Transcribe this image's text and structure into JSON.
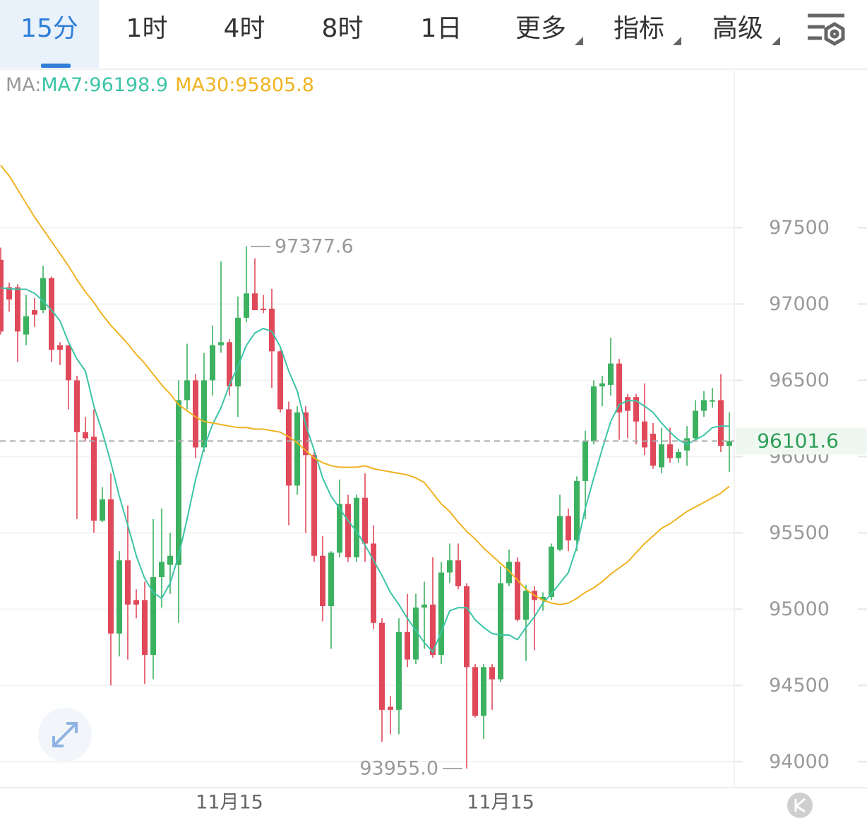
{
  "tabs": [
    "15分",
    "1时",
    "4时",
    "8时",
    "1日",
    "更多",
    "指标",
    "高级"
  ],
  "chart_data": {
    "type": "candlestick",
    "ma_label": "MA:",
    "up_color": "#3cb160",
    "down_color": "#e0495a",
    "ylim": [
      93830,
      98530
    ],
    "yticks": [
      94000,
      94500,
      95000,
      95500,
      96000,
      96500,
      97000,
      97500
    ],
    "grid": true,
    "last_price": 96101.6,
    "max_marker": 97377.6,
    "min_marker": {
      "value": 93955,
      "label": "93955.0"
    },
    "categories": [
      null,
      null,
      null,
      null,
      null,
      null,
      null,
      null,
      null,
      null,
      null,
      null,
      null,
      null,
      null,
      null,
      null,
      null,
      null,
      null,
      null,
      null,
      null,
      null,
      null,
      null,
      null,
      "11月15",
      null,
      null,
      null,
      null,
      null,
      null,
      null,
      null,
      null,
      null,
      null,
      null,
      null,
      null,
      null,
      null,
      null,
      null,
      null,
      null,
      null,
      null,
      null,
      null,
      null,
      null,
      null,
      null,
      null,
      null,
      null,
      "11月15",
      null,
      null,
      null,
      null,
      null,
      null,
      null,
      null,
      null,
      null,
      null,
      null,
      null,
      null,
      null,
      null,
      null,
      null,
      null,
      null,
      null,
      null,
      null,
      null,
      null,
      null,
      null
    ],
    "open": [
      97290,
      97110,
      97110,
      96800,
      96960,
      96960,
      97170,
      96730,
      96730,
      96500,
      96160,
      96130,
      95580,
      95720,
      94840,
      95320,
      95060,
      95060,
      94700,
      95210,
      95290,
      95290,
      96370,
      96500,
      96060,
      96500,
      96730,
      96750,
      96460,
      96910,
      97070,
      96970,
      96970,
      96690,
      96310,
      95810,
      96290,
      96010,
      95350,
      95020,
      95370,
      95690,
      95340,
      95730,
      95430,
      94910,
      94360,
      94340,
      94850,
      94670,
      95010,
      95030,
      94700,
      95240,
      95320,
      95150,
      94620,
      94300,
      94620,
      94540,
      95170,
      95310,
      94930,
      95120,
      95060,
      95080,
      95390,
      95610,
      95450,
      95840,
      96100,
      96460,
      96470,
      96610,
      96390,
      96390,
      96230,
      96150,
      95930,
      96080,
      95990,
      96040,
      96120,
      96300,
      96360,
      96370,
      96070
    ],
    "high": [
      97370,
      97140,
      97130,
      97060,
      97040,
      97250,
      97180,
      96750,
      96730,
      96530,
      96260,
      96310,
      95800,
      95890,
      95380,
      95680,
      95130,
      95180,
      95590,
      95660,
      95500,
      96500,
      96740,
      96540,
      96680,
      96860,
      97280,
      96770,
      97050,
      97377.6,
      97300,
      97060,
      97100,
      96700,
      96360,
      96330,
      96330,
      96030,
      95480,
      95380,
      95850,
      95750,
      95750,
      95890,
      95550,
      94940,
      94430,
      94940,
      95100,
      95100,
      95180,
      95340,
      95310,
      95430,
      95430,
      95170,
      94640,
      94640,
      94640,
      95280,
      95390,
      95340,
      95160,
      95150,
      95110,
      95430,
      95750,
      95660,
      95870,
      96170,
      96500,
      96530,
      96780,
      96640,
      96410,
      96410,
      96480,
      96220,
      96190,
      96190,
      96050,
      96200,
      96370,
      96430,
      96450,
      96540,
      96290
    ],
    "low": [
      96800,
      96950,
      96620,
      96730,
      96850,
      96940,
      96620,
      96600,
      96310,
      95590,
      96100,
      95500,
      95570,
      94500,
      94690,
      94670,
      94940,
      94510,
      94540,
      95010,
      95100,
      94910,
      96310,
      95990,
      96030,
      96400,
      96680,
      96400,
      96260,
      96880,
      96960,
      96940,
      96450,
      96290,
      95550,
      95750,
      95500,
      95310,
      94920,
      94740,
      95340,
      95310,
      95310,
      95310,
      94870,
      94130,
      94180,
      94180,
      94620,
      94640,
      94740,
      94680,
      94640,
      95170,
      95130,
      93955,
      94290,
      94150,
      94340,
      94520,
      95150,
      94920,
      94660,
      94730,
      94990,
      95060,
      95380,
      95380,
      95380,
      95590,
      96080,
      96330,
      96400,
      96110,
      96120,
      96080,
      96010,
      95920,
      95890,
      95960,
      95960,
      95940,
      96100,
      96260,
      96320,
      96030,
      95900
    ],
    "close": [
      96820,
      97030,
      96820,
      96920,
      96930,
      97170,
      96700,
      96700,
      96500,
      96160,
      96120,
      95580,
      95720,
      94840,
      95320,
      95030,
      95030,
      94700,
      95210,
      95310,
      95350,
      96370,
      96500,
      96060,
      96500,
      96730,
      96750,
      96460,
      96910,
      97070,
      96960,
      96960,
      96690,
      96310,
      95810,
      96290,
      96010,
      95350,
      95020,
      95370,
      95690,
      95340,
      95730,
      95430,
      94910,
      94340,
      94340,
      94850,
      94670,
      95010,
      95030,
      94700,
      95240,
      95320,
      95150,
      94620,
      94300,
      94620,
      94540,
      95170,
      95310,
      94930,
      95120,
      95060,
      95080,
      95410,
      95610,
      95450,
      95840,
      96100,
      96460,
      96480,
      96610,
      96290,
      96300,
      96230,
      96060,
      95940,
      96080,
      95990,
      96030,
      96120,
      96300,
      96370,
      96370,
      96070,
      96101.6
    ],
    "series": [
      {
        "name": "MA7:96198.9",
        "color": "#3cc4a6",
        "values": [
          97106,
          97100,
          97097,
          97097,
          97070,
          97020,
          96960,
          96890,
          96750,
          96640,
          96560,
          96330,
          96160,
          95960,
          95740,
          95550,
          95350,
          95200,
          95110,
          95070,
          95170,
          95350,
          95590,
          95850,
          96060,
          96210,
          96320,
          96470,
          96590,
          96730,
          96810,
          96840,
          96820,
          96720,
          96560,
          96430,
          96210,
          96040,
          95860,
          95740,
          95660,
          95580,
          95510,
          95420,
          95320,
          95220,
          95110,
          95030,
          94940,
          94860,
          94780,
          94720,
          94850,
          94990,
          95010,
          95010,
          94930,
          94880,
          94840,
          94830,
          94830,
          94800,
          94880,
          94950,
          95040,
          95100,
          95170,
          95240,
          95410,
          95660,
          95860,
          96050,
          96230,
          96340,
          96366,
          96366,
          96330,
          96290,
          96220,
          96160,
          96110,
          96080,
          96110,
          96140,
          96190,
          96200,
          96198.9
        ]
      },
      {
        "name": "MA30:95805.8",
        "color": "#efb320",
        "values": [
          97910,
          97840,
          97750,
          97660,
          97570,
          97490,
          97410,
          97330,
          97250,
          97160,
          97080,
          97010,
          96930,
          96860,
          96800,
          96740,
          96670,
          96610,
          96540,
          96470,
          96410,
          96340,
          96300,
          96260,
          96230,
          96220,
          96210,
          96200,
          96190,
          96190,
          96180,
          96180,
          96170,
          96160,
          96130,
          96090,
          96040,
          95990,
          95960,
          95940,
          95930,
          95930,
          95930,
          95940,
          95920,
          95910,
          95900,
          95890,
          95880,
          95860,
          95830,
          95760,
          95690,
          95640,
          95570,
          95510,
          95460,
          95400,
          95350,
          95300,
          95250,
          95190,
          95130,
          95090,
          95060,
          95040,
          95030,
          95040,
          95070,
          95110,
          95140,
          95180,
          95230,
          95270,
          95310,
          95370,
          95430,
          95480,
          95530,
          95560,
          95600,
          95640,
          95670,
          95700,
          95730,
          95760,
          95805.8
        ]
      }
    ]
  }
}
